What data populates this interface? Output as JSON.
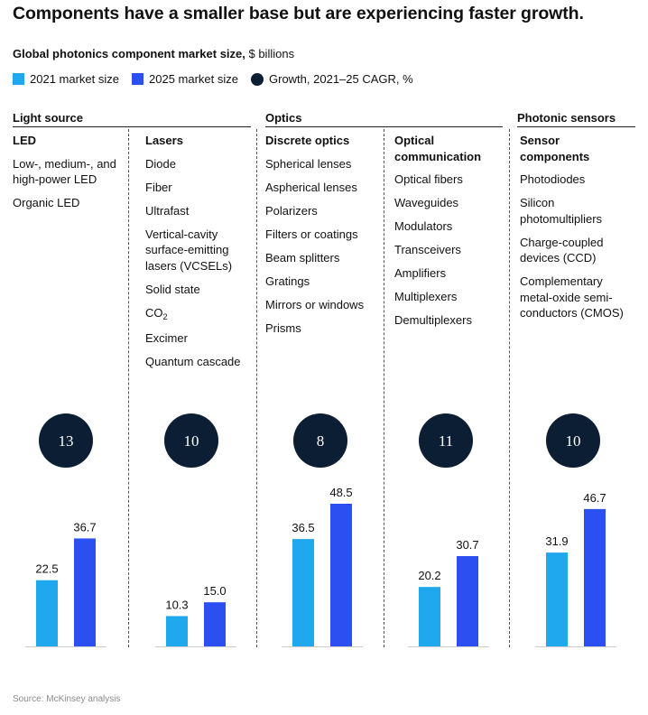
{
  "title": "Components have a smaller base but are experiencing faster growth.",
  "subtitle": {
    "strong": "Global photonics component market size,",
    "rest": " $ billions"
  },
  "legend": [
    {
      "label": "2021 market size",
      "color": "#1fa8ed",
      "shape": "square"
    },
    {
      "label": "2025 market size",
      "color": "#2c4ff2",
      "shape": "square"
    },
    {
      "label": "Growth, 2021–25 CAGR, %",
      "color": "#0b1e33",
      "shape": "circle"
    }
  ],
  "groups": [
    {
      "label": "Light source"
    },
    {
      "label": "Optics"
    },
    {
      "label": "Photonic sensors"
    }
  ],
  "columns": [
    {
      "heading": "LED",
      "items": [
        "Low-, medium-, and high-power LED",
        "Organic LED"
      ]
    },
    {
      "heading": "Lasers",
      "items": [
        "Diode",
        "Fiber",
        "Ultrafast",
        "Vertical-cavity surface-emitting lasers (VCSELs)",
        "Solid state",
        "CO|2",
        "Excimer",
        "Quantum cascade"
      ]
    },
    {
      "heading": "Discrete optics",
      "items": [
        "Spherical lenses",
        "Aspherical lenses",
        "Polarizers",
        "Filters or coatings",
        "Beam splitters",
        "Gratings",
        "Mirrors or windows",
        "Prisms"
      ]
    },
    {
      "heading": "Optical communication",
      "items": [
        "Optical fibers",
        "Waveguides",
        "Modulators",
        "Transceivers",
        "Amplifiers",
        "Multiplexers",
        "Demultiplexers"
      ]
    },
    {
      "heading": "Sensor components",
      "items": [
        "Photodiodes",
        "Silicon photomultipliers",
        "Charge-coupled devices (CCD)",
        "Complementary metal-oxide semi-conductors (CMOS)"
      ]
    }
  ],
  "chart_data": {
    "type": "bar",
    "categories": [
      "LED",
      "Lasers",
      "Discrete optics",
      "Optical communication",
      "Sensor components"
    ],
    "series": [
      {
        "name": "2021 market size",
        "values": [
          22.5,
          10.3,
          36.5,
          20.2,
          31.9
        ],
        "labels": [
          "22.5",
          "10.3",
          "36.5",
          "20.2",
          "31.9"
        ],
        "color": "#1fa8ed"
      },
      {
        "name": "2025 market size",
        "values": [
          36.7,
          15.0,
          48.5,
          30.7,
          46.7
        ],
        "labels": [
          "36.7",
          "15.0",
          "48.5",
          "30.7",
          "46.7"
        ],
        "color": "#2c4ff2"
      }
    ],
    "cagr": {
      "name": "Growth, 2021–25 CAGR, %",
      "values": [
        13,
        10,
        8,
        11,
        10
      ],
      "color": "#0b1e33"
    },
    "ylim": [
      0,
      48.5
    ],
    "grid": false,
    "legend_position": "top-left"
  },
  "source": "Source: McKinsey analysis"
}
